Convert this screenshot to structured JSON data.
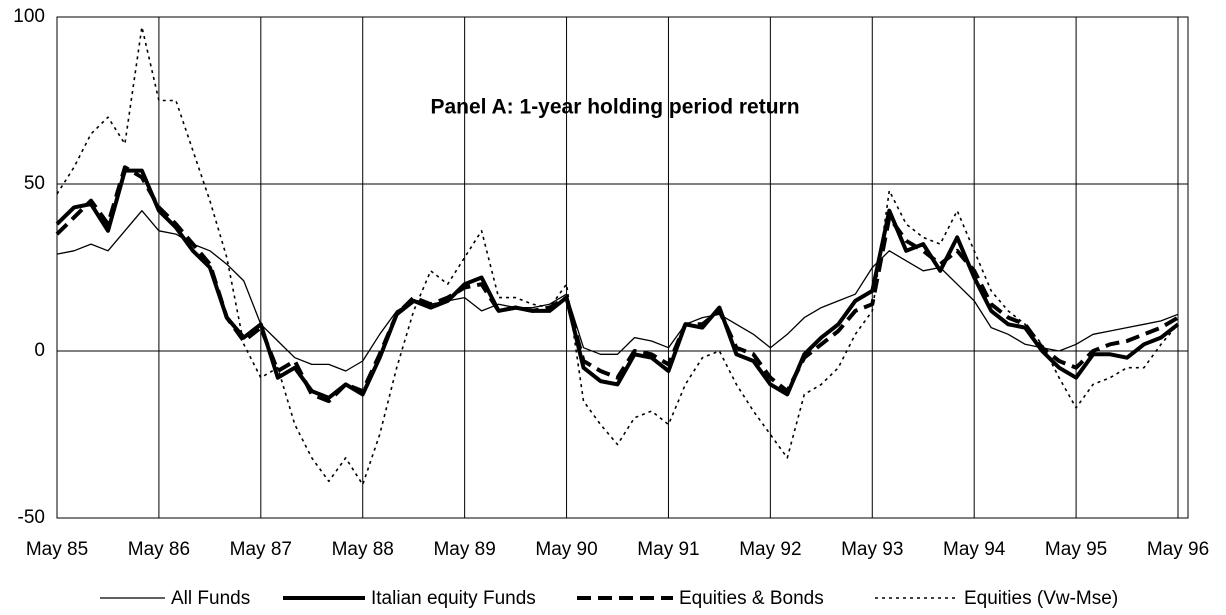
{
  "chart_data": {
    "type": "line",
    "title": "Panel A: 1-year holding period return",
    "categories": [
      "May 85",
      null,
      null,
      null,
      null,
      null,
      "May 86",
      null,
      null,
      null,
      null,
      null,
      "May 87",
      null,
      null,
      null,
      null,
      null,
      "May 88",
      null,
      null,
      null,
      null,
      null,
      "May 89",
      null,
      null,
      null,
      null,
      null,
      "May 90",
      null,
      null,
      null,
      null,
      null,
      "May 91",
      null,
      null,
      null,
      null,
      null,
      "May 92",
      null,
      null,
      null,
      null,
      null,
      "May 93",
      null,
      null,
      null,
      null,
      null,
      "May 94",
      null,
      null,
      null,
      null,
      null,
      "May 95",
      null,
      null,
      null,
      null,
      null,
      "May 96"
    ],
    "series": [
      {
        "name": "All Funds",
        "color": "#000000",
        "style": "thin",
        "values": [
          29,
          30,
          32,
          30,
          36,
          42,
          36,
          35,
          32,
          30,
          26,
          21,
          8,
          3,
          -2,
          -4,
          -4,
          -6,
          -3,
          5,
          12,
          15,
          14,
          15,
          16,
          12,
          14,
          13,
          13,
          14,
          17,
          1,
          -1,
          -1,
          4,
          3,
          1,
          8,
          10,
          11,
          8,
          5,
          1,
          5,
          10,
          13,
          15,
          17,
          25,
          30,
          27,
          24,
          25,
          20,
          15,
          7,
          5,
          2,
          1,
          0,
          2,
          5,
          6,
          7,
          8,
          9,
          11
        ]
      },
      {
        "name": "Italian equity Funds",
        "color": "#000000",
        "style": "thick",
        "values": [
          38,
          43,
          44,
          36,
          54,
          54,
          42,
          37,
          30,
          25,
          10,
          4,
          8,
          -8,
          -5,
          -12,
          -14,
          -10,
          -13,
          -2,
          11,
          15,
          13,
          15,
          20,
          22,
          12,
          13,
          12,
          12,
          16,
          -5,
          -9,
          -10,
          -1,
          -2,
          -6,
          8,
          7,
          13,
          -1,
          -3,
          -10,
          -13,
          -1,
          4,
          8,
          15,
          18,
          42,
          30,
          32,
          24,
          34,
          22,
          12,
          8,
          7,
          0,
          -5,
          -8,
          -1,
          -1,
          -2,
          2,
          4,
          8
        ]
      },
      {
        "name": "Equities & Bonds",
        "color": "#000000",
        "style": "dashed",
        "values": [
          35,
          40,
          45,
          38,
          55,
          52,
          43,
          38,
          32,
          26,
          10,
          3,
          7,
          -6,
          -3,
          -13,
          -15,
          -10,
          -12,
          -1,
          11,
          16,
          14,
          16,
          19,
          20,
          12,
          13,
          12,
          13,
          16,
          -3,
          -6,
          -8,
          0,
          -1,
          -4,
          8,
          8,
          12,
          1,
          -1,
          -8,
          -12,
          -2,
          2,
          6,
          12,
          14,
          40,
          33,
          30,
          26,
          30,
          24,
          14,
          10,
          8,
          1,
          -3,
          -5,
          0,
          2,
          3,
          5,
          7,
          10
        ]
      },
      {
        "name": "Equities (Vw-Mse)",
        "color": "#000000",
        "style": "dotted",
        "values": [
          47,
          55,
          65,
          70,
          62,
          97,
          75,
          75,
          60,
          45,
          28,
          2,
          -8,
          -5,
          -22,
          -32,
          -39,
          -32,
          -40,
          -25,
          -5,
          12,
          24,
          20,
          28,
          36,
          16,
          16,
          14,
          13,
          20,
          -15,
          -22,
          -28,
          -20,
          -18,
          -22,
          -10,
          -2,
          0,
          -10,
          -18,
          -25,
          -32,
          -13,
          -10,
          -5,
          5,
          12,
          48,
          38,
          34,
          32,
          42,
          30,
          18,
          12,
          8,
          2,
          -8,
          -17,
          -10,
          -8,
          -5,
          -5,
          2,
          8
        ]
      }
    ],
    "ylim": [
      -50,
      100
    ],
    "yticks": [
      -50,
      0,
      50,
      100
    ],
    "grid": true,
    "legend": "bottom"
  }
}
